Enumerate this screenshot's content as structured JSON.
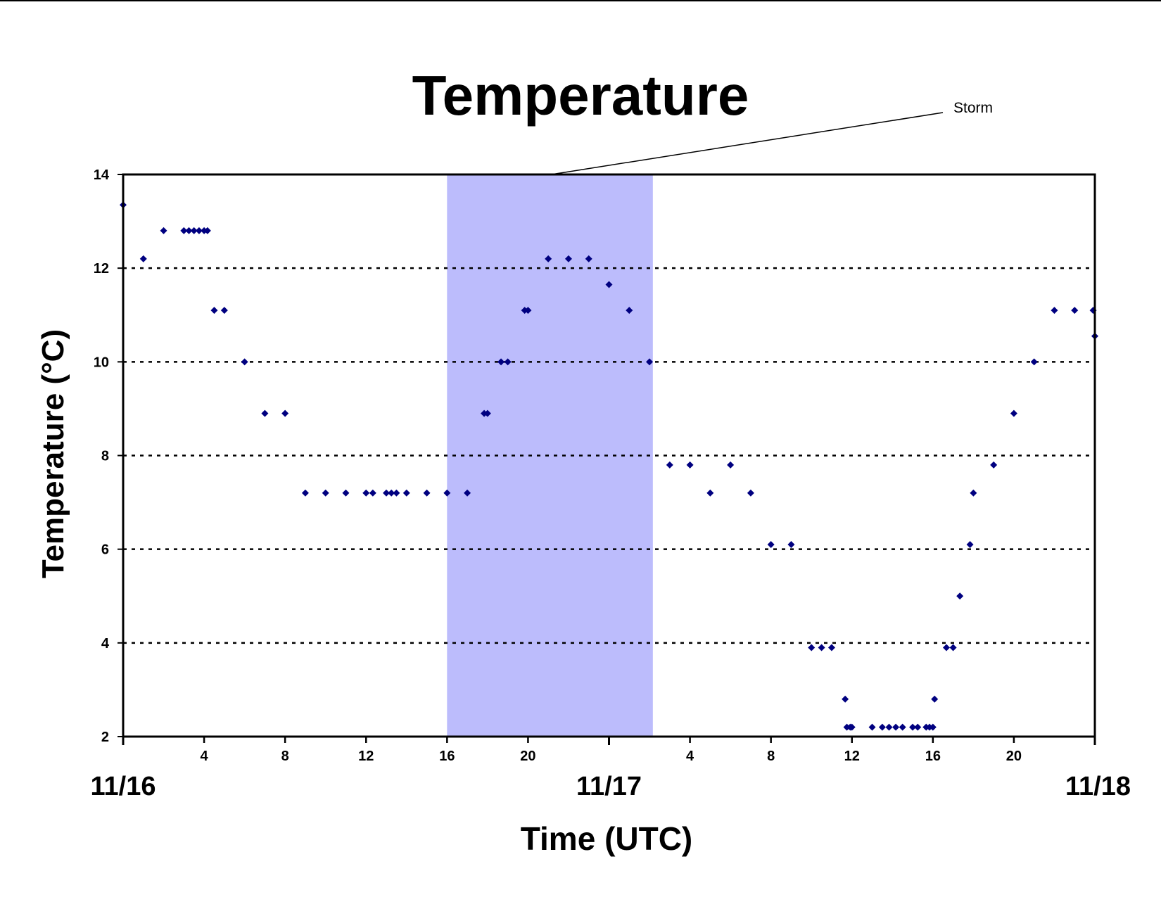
{
  "chart_data": {
    "type": "scatter",
    "title": "Temperature",
    "xlabel": "Time (UTC)",
    "ylabel": "Temperature (°C)",
    "ylim": [
      2,
      14
    ],
    "xlim": [
      "11/16 00:00",
      "11/18 00:00"
    ],
    "yticks": [
      "2",
      "4",
      "6",
      "8",
      "10",
      "12",
      "14"
    ],
    "xticks_hour": [
      {
        "x": "11/16 04:00",
        "label": "4"
      },
      {
        "x": "11/16 08:00",
        "label": "8"
      },
      {
        "x": "11/16 12:00",
        "label": "12"
      },
      {
        "x": "11/16 16:00",
        "label": "16"
      },
      {
        "x": "11/16 20:00",
        "label": "20"
      },
      {
        "x": "11/17 04:00",
        "label": "4"
      },
      {
        "x": "11/17 08:00",
        "label": "8"
      },
      {
        "x": "11/17 12:00",
        "label": "12"
      },
      {
        "x": "11/17 16:00",
        "label": "16"
      },
      {
        "x": "11/17 20:00",
        "label": "20"
      }
    ],
    "xticks_date": [
      {
        "x": "11/16 00:00",
        "label": "11/16"
      },
      {
        "x": "11/17 00:00",
        "label": "11/17"
      },
      {
        "x": "11/18 00:00",
        "label": "11/18"
      }
    ],
    "grid": "horizontal dotted",
    "annotation": {
      "text": "Storm",
      "span": [
        "11/16 16:00",
        "11/17 02:10"
      ],
      "fill": "#bcbcfc"
    },
    "marker_color": "#000080",
    "series": [
      {
        "x": [
          "11/16 00:00",
          "11/16 01:00",
          "11/16 02:00",
          "11/16 03:00",
          "11/16 03:15",
          "11/16 03:30",
          "11/16 03:45",
          "11/16 04:00",
          "11/16 04:10",
          "11/16 04:30",
          "11/16 05:00",
          "11/16 06:00",
          "11/16 07:00",
          "11/16 08:00",
          "11/16 09:00",
          "11/16 10:00",
          "11/16 11:00",
          "11/16 12:00",
          "11/16 12:20",
          "11/16 13:00",
          "11/16 13:15",
          "11/16 13:30",
          "11/16 14:00",
          "11/16 15:00",
          "11/16 16:00",
          "11/16 17:00",
          "11/16 17:50",
          "11/16 18:00",
          "11/16 18:40",
          "11/16 19:00",
          "11/16 19:50",
          "11/16 20:00",
          "11/16 21:00",
          "11/16 22:00",
          "11/16 23:00",
          "11/17 00:00",
          "11/17 01:00",
          "11/17 02:00",
          "11/17 03:00",
          "11/17 04:00",
          "11/17 05:00",
          "11/17 06:00",
          "11/17 07:00",
          "11/17 08:00",
          "11/17 09:00",
          "11/17 10:00",
          "11/17 10:30",
          "11/17 11:00",
          "11/17 11:40",
          "11/17 11:45",
          "11/17 11:55",
          "11/17 12:00",
          "11/17 13:00",
          "11/17 13:30",
          "11/17 13:50",
          "11/17 14:10",
          "11/17 14:30",
          "11/17 15:00",
          "11/17 15:15",
          "11/17 15:40",
          "11/17 15:50",
          "11/17 16:00",
          "11/17 16:05",
          "11/17 16:40",
          "11/17 17:00",
          "11/17 17:20",
          "11/17 17:50",
          "11/17 18:00",
          "11/17 19:00",
          "11/17 20:00",
          "11/17 21:00",
          "11/17 22:00",
          "11/17 23:00",
          "11/17 23:55",
          "11/18 00:00"
        ],
        "y": [
          13.35,
          12.2,
          12.8,
          12.8,
          12.8,
          12.8,
          12.8,
          12.8,
          12.8,
          11.1,
          11.1,
          10.0,
          8.9,
          8.9,
          7.2,
          7.2,
          7.2,
          7.2,
          7.2,
          7.2,
          7.2,
          7.2,
          7.2,
          7.2,
          7.2,
          7.2,
          8.9,
          8.9,
          10.0,
          10.0,
          11.1,
          11.1,
          12.2,
          12.2,
          12.2,
          11.65,
          11.1,
          10.0,
          7.8,
          7.8,
          7.2,
          7.8,
          7.2,
          6.1,
          6.1,
          3.9,
          3.9,
          3.9,
          2.8,
          2.2,
          2.2,
          2.2,
          2.2,
          2.2,
          2.2,
          2.2,
          2.2,
          2.2,
          2.2,
          2.2,
          2.2,
          2.2,
          2.8,
          3.9,
          3.9,
          5.0,
          6.1,
          7.2,
          7.8,
          8.9,
          10.0,
          11.1,
          11.1,
          11.1,
          10.55
        ]
      }
    ]
  }
}
